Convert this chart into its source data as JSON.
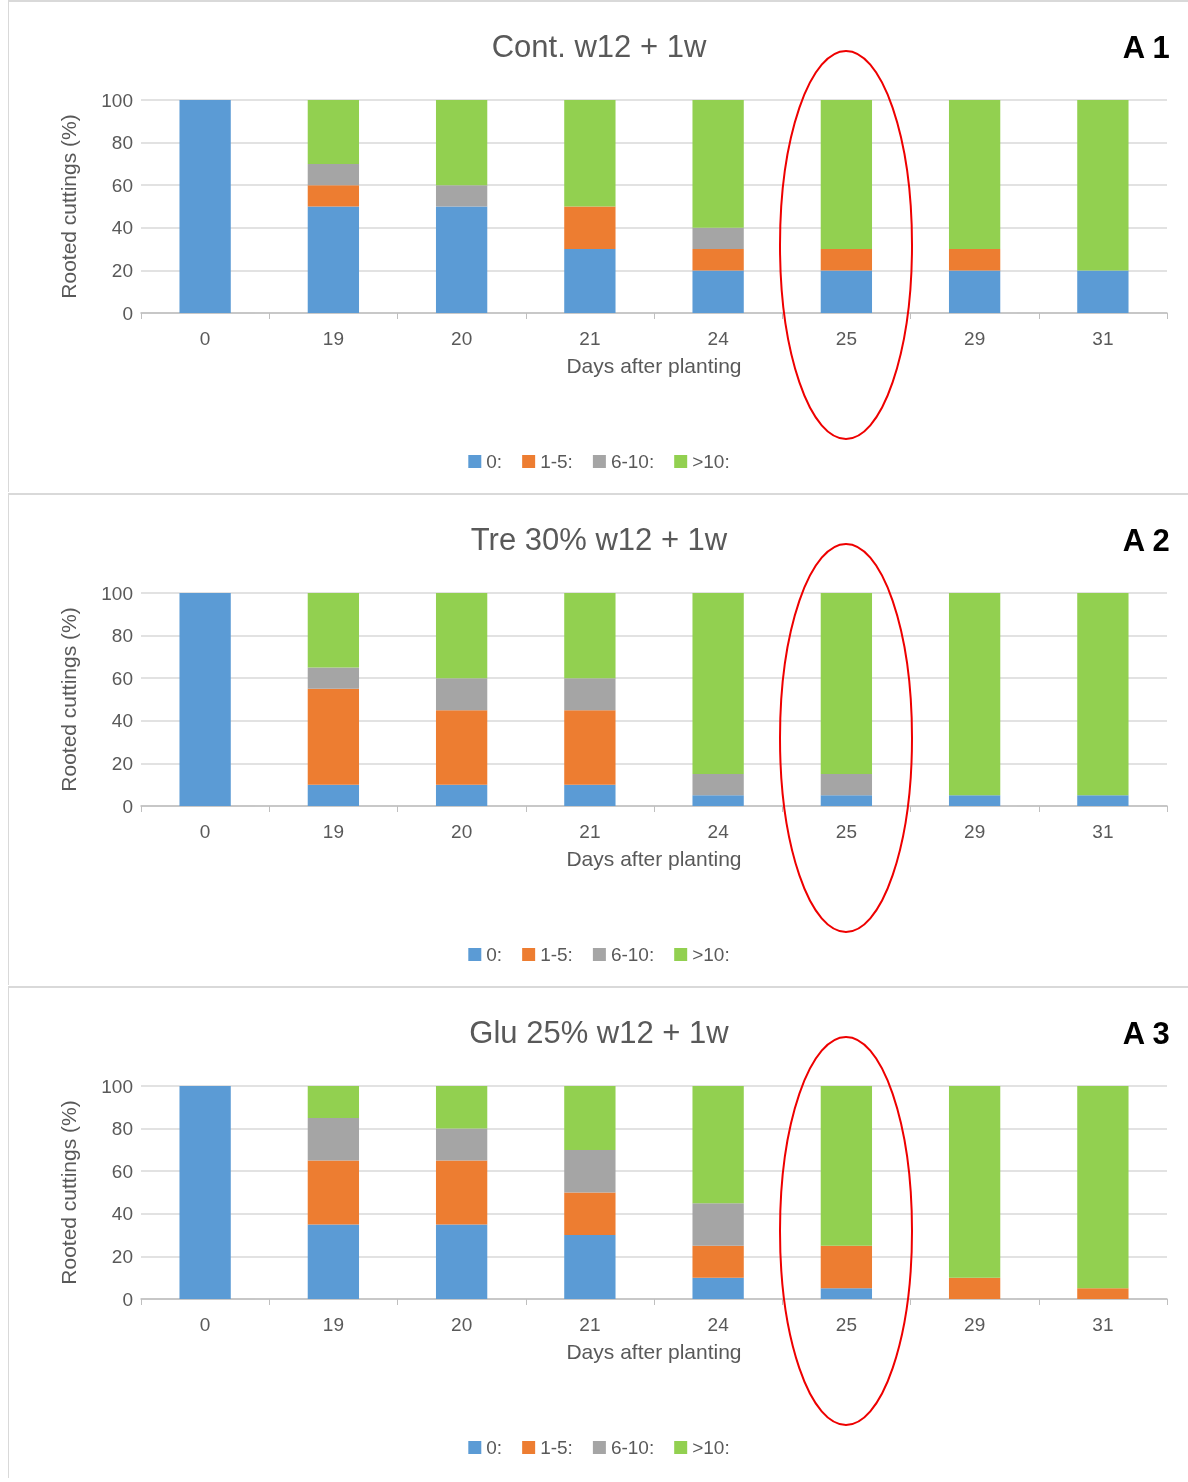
{
  "chart_data": [
    {
      "type": "bar",
      "title": "Cont. w12 + 1w",
      "xlabel": "Days after planting",
      "ylabel": "Rooted cuttings (%)",
      "annotations": [
        "A 1"
      ],
      "categories": [
        "0",
        "19",
        "20",
        "21",
        "24",
        "25",
        "29",
        "31"
      ],
      "stacked": true,
      "ylim": [
        0,
        100
      ],
      "yticks": [
        0,
        20,
        40,
        60,
        80,
        100
      ],
      "grid": "y",
      "legend": "bottom",
      "series": [
        {
          "name": "0:",
          "color": "#5b9bd5",
          "values": [
            100,
            50,
            50,
            30,
            20,
            20,
            20,
            20
          ]
        },
        {
          "name": "1-5:",
          "color": "#ed7d31",
          "values": [
            0,
            10,
            0,
            20,
            10,
            10,
            10,
            0
          ]
        },
        {
          "name": "6-10:",
          "color": "#a5a5a5",
          "values": [
            0,
            10,
            10,
            0,
            10,
            0,
            0,
            0
          ]
        },
        {
          "name": ">10:",
          "color": "#92d050",
          "values": [
            0,
            30,
            40,
            50,
            60,
            70,
            70,
            80
          ]
        }
      ]
    },
    {
      "type": "bar",
      "title": "Tre 30% w12 + 1w",
      "xlabel": "Days after planting",
      "ylabel": "Rooted cuttings (%)",
      "annotations": [
        "A 2"
      ],
      "categories": [
        "0",
        "19",
        "20",
        "21",
        "24",
        "25",
        "29",
        "31"
      ],
      "stacked": true,
      "ylim": [
        0,
        100
      ],
      "yticks": [
        0,
        20,
        40,
        60,
        80,
        100
      ],
      "grid": "y",
      "legend": "bottom",
      "series": [
        {
          "name": "0:",
          "color": "#5b9bd5",
          "values": [
            100,
            10,
            10,
            10,
            5,
            5,
            5,
            5
          ]
        },
        {
          "name": "1-5:",
          "color": "#ed7d31",
          "values": [
            0,
            45,
            35,
            35,
            0,
            0,
            0,
            0
          ]
        },
        {
          "name": "6-10:",
          "color": "#a5a5a5",
          "values": [
            0,
            10,
            15,
            15,
            10,
            10,
            0,
            0
          ]
        },
        {
          "name": ">10:",
          "color": "#92d050",
          "values": [
            0,
            35,
            40,
            40,
            85,
            85,
            95,
            95
          ]
        }
      ]
    },
    {
      "type": "bar",
      "title": "Glu 25% w12 + 1w",
      "xlabel": "Days after planting",
      "ylabel": "Rooted cuttings (%)",
      "annotations": [
        "A 3"
      ],
      "categories": [
        "0",
        "19",
        "20",
        "21",
        "24",
        "25",
        "29",
        "31"
      ],
      "stacked": true,
      "ylim": [
        0,
        100
      ],
      "yticks": [
        0,
        20,
        40,
        60,
        80,
        100
      ],
      "grid": "y",
      "legend": "bottom",
      "series": [
        {
          "name": "0:",
          "color": "#5b9bd5",
          "values": [
            100,
            35,
            35,
            30,
            10,
            5,
            0,
            0
          ]
        },
        {
          "name": "1-5:",
          "color": "#ed7d31",
          "values": [
            0,
            30,
            30,
            20,
            15,
            20,
            10,
            5
          ]
        },
        {
          "name": "6-10:",
          "color": "#a5a5a5",
          "values": [
            0,
            20,
            15,
            20,
            20,
            0,
            0,
            0
          ]
        },
        {
          "name": ">10:",
          "color": "#92d050",
          "values": [
            0,
            15,
            20,
            30,
            55,
            75,
            90,
            95
          ]
        }
      ]
    }
  ]
}
